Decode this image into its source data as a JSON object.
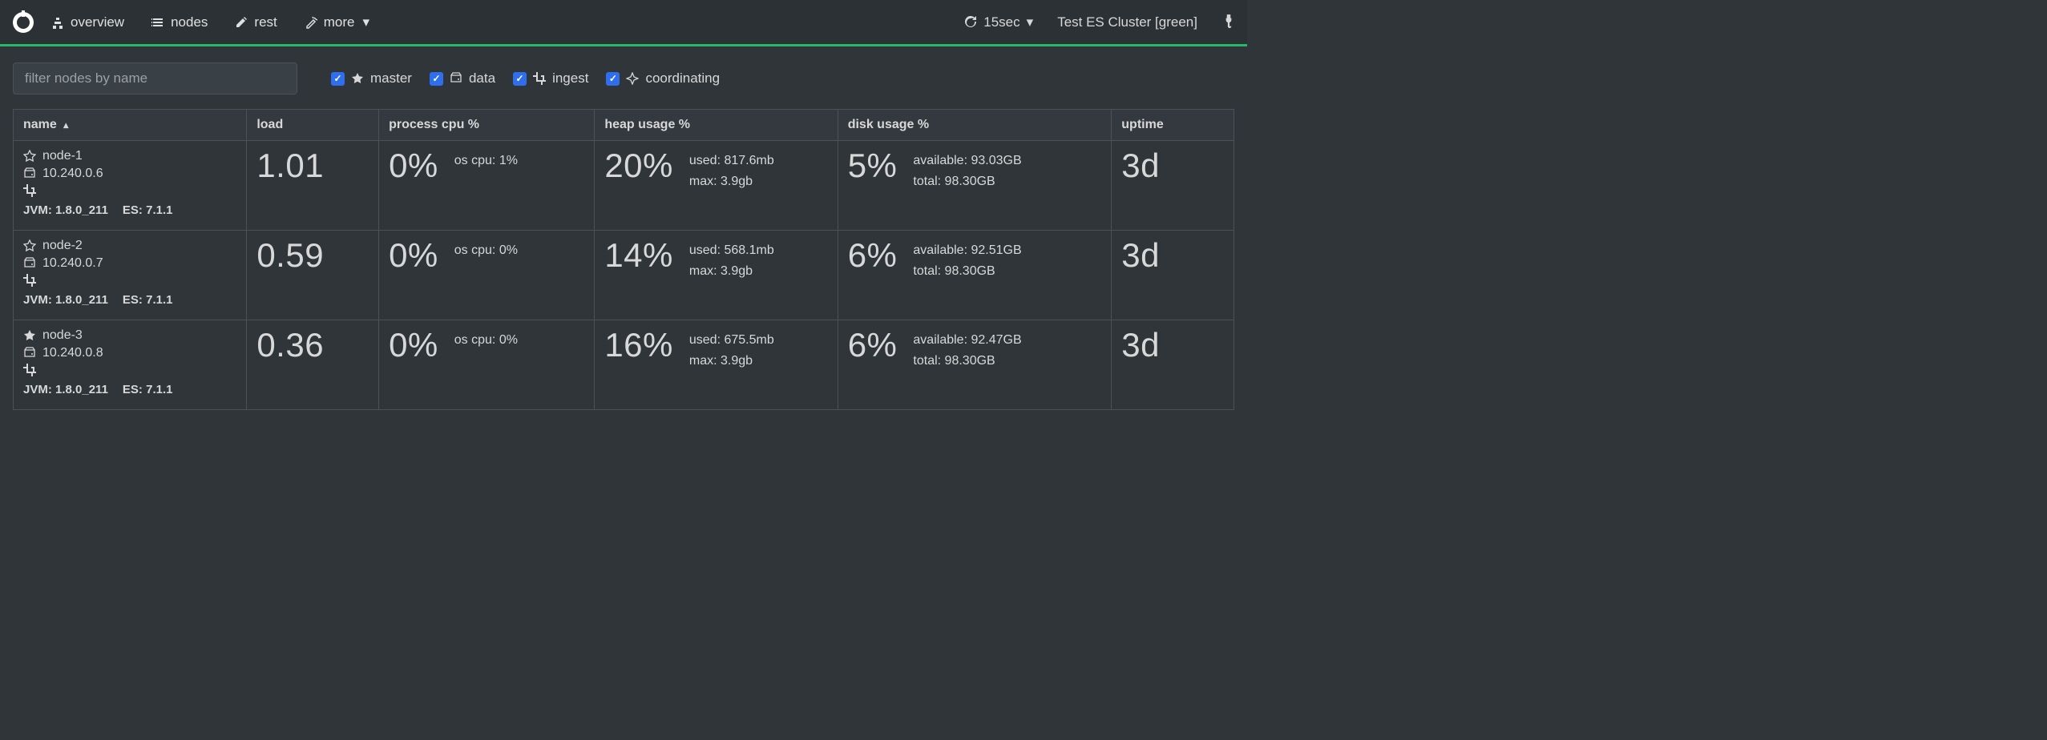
{
  "colors": {
    "bg": "#2f3539",
    "nav_bg": "#2b3135",
    "accent": "#28b76b",
    "border": "#4a5258",
    "checkbox": "#2f6fed",
    "text": "#d8d8d8",
    "placeholder": "#9aa0a4"
  },
  "nav": {
    "items": [
      {
        "icon": "sitemap",
        "label": "overview"
      },
      {
        "icon": "list",
        "label": "nodes"
      },
      {
        "icon": "edit",
        "label": "rest"
      },
      {
        "icon": "wand",
        "label": "more",
        "caret": true
      }
    ],
    "refresh": {
      "label": "15sec"
    },
    "cluster": "Test ES Cluster [green]"
  },
  "filters": {
    "placeholder": "filter nodes by name",
    "roles": [
      {
        "icon": "star-solid",
        "label": "master",
        "checked": true
      },
      {
        "icon": "hdd",
        "label": "data",
        "checked": true
      },
      {
        "icon": "crop",
        "label": "ingest",
        "checked": true
      },
      {
        "icon": "compass",
        "label": "coordinating",
        "checked": true
      }
    ]
  },
  "table": {
    "columns": [
      {
        "key": "name",
        "label": "name",
        "sorted": "asc"
      },
      {
        "key": "load",
        "label": "load"
      },
      {
        "key": "cpu",
        "label": "process cpu %"
      },
      {
        "key": "heap",
        "label": "heap usage %"
      },
      {
        "key": "disk",
        "label": "disk usage %"
      },
      {
        "key": "uptime",
        "label": "uptime"
      }
    ],
    "rows": [
      {
        "master_icon": "star-outline",
        "name": "node-1",
        "ip": "10.240.0.6",
        "jvm_label": "JVM:",
        "jvm": "1.8.0_211",
        "es_label": "ES:",
        "es": "7.1.1",
        "load": "1.01",
        "cpu": "0%",
        "os_cpu_label": "os cpu:",
        "os_cpu": "1%",
        "heap": "20%",
        "heap_used_label": "used:",
        "heap_used": "817.6mb",
        "heap_max_label": "max:",
        "heap_max": "3.9gb",
        "disk": "5%",
        "disk_avail_label": "available:",
        "disk_avail": "93.03GB",
        "disk_total_label": "total:",
        "disk_total": "98.30GB",
        "uptime": "3d"
      },
      {
        "master_icon": "star-outline",
        "name": "node-2",
        "ip": "10.240.0.7",
        "jvm_label": "JVM:",
        "jvm": "1.8.0_211",
        "es_label": "ES:",
        "es": "7.1.1",
        "load": "0.59",
        "cpu": "0%",
        "os_cpu_label": "os cpu:",
        "os_cpu": "0%",
        "heap": "14%",
        "heap_used_label": "used:",
        "heap_used": "568.1mb",
        "heap_max_label": "max:",
        "heap_max": "3.9gb",
        "disk": "6%",
        "disk_avail_label": "available:",
        "disk_avail": "92.51GB",
        "disk_total_label": "total:",
        "disk_total": "98.30GB",
        "uptime": "3d"
      },
      {
        "master_icon": "star-solid",
        "name": "node-3",
        "ip": "10.240.0.8",
        "jvm_label": "JVM:",
        "jvm": "1.8.0_211",
        "es_label": "ES:",
        "es": "7.1.1",
        "load": "0.36",
        "cpu": "0%",
        "os_cpu_label": "os cpu:",
        "os_cpu": "0%",
        "heap": "16%",
        "heap_used_label": "used:",
        "heap_used": "675.5mb",
        "heap_max_label": "max:",
        "heap_max": "3.9gb",
        "disk": "6%",
        "disk_avail_label": "available:",
        "disk_avail": "92.47GB",
        "disk_total_label": "total:",
        "disk_total": "98.30GB",
        "uptime": "3d"
      }
    ]
  }
}
